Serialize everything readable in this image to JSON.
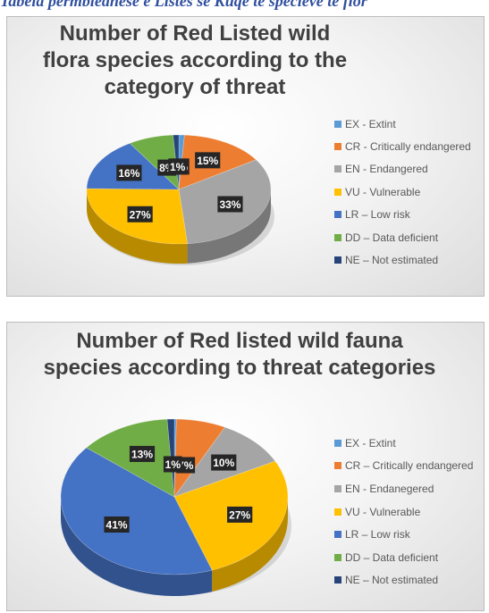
{
  "header": {
    "caption": "Tabela permbledhese e Listes se Kuqe te specieve te flor"
  },
  "chart_data": [
    {
      "type": "pie",
      "title": "Number of Red Listed wild flora species according to the category of threat",
      "categories": [
        "EX - Extint",
        "CR - Critically endangered",
        "EN - Endangered",
        "VU - Vulnerable",
        "LR – Low risk",
        "DD – Data deficient",
        "NE – Not estimated"
      ],
      "values": [
        1,
        15,
        33,
        27,
        16,
        8,
        1
      ],
      "labels": [
        "1%",
        "15%",
        "33%",
        "27%",
        "16%",
        "8%",
        "1%"
      ],
      "colors": [
        "#5b9bd5",
        "#ed7d31",
        "#a5a5a5",
        "#ffc000",
        "#4472c4",
        "#70ad47",
        "#264478"
      ],
      "legend_position": "right",
      "grid": false
    },
    {
      "type": "pie",
      "title": "Number of Red listed wild fauna species according to threat categories",
      "categories": [
        "EX - Extint",
        "CR – Critically endangered",
        "EN - Endanegered",
        "VU - Vulnerable",
        "LR – Low risk",
        "DD – Data deficient",
        "NE – Not estimated"
      ],
      "values": [
        0.3,
        7,
        10,
        27,
        41,
        13,
        1
      ],
      "labels": [
        "",
        "7%",
        "10%",
        "27%",
        "41%",
        "13%",
        "1%"
      ],
      "colors": [
        "#5b9bd5",
        "#ed7d31",
        "#a5a5a5",
        "#ffc000",
        "#4472c4",
        "#70ad47",
        "#264478"
      ],
      "legend_position": "right",
      "grid": false
    }
  ]
}
